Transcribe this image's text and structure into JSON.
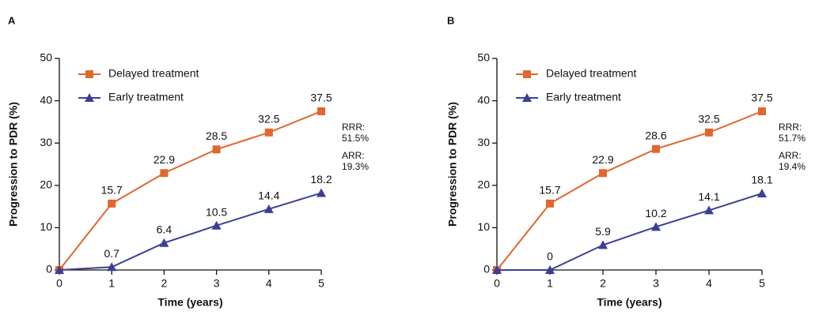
{
  "chart_data": [
    {
      "type": "line",
      "panel": "A",
      "xlabel": "Time (years)",
      "ylabel": "Progression to PDR (%)",
      "x": [
        0,
        1,
        2,
        3,
        4,
        5
      ],
      "xlim": [
        0,
        5
      ],
      "xticks": [
        0,
        1,
        2,
        3,
        4,
        5
      ],
      "ylim": [
        0,
        50
      ],
      "yticks": [
        0,
        10,
        20,
        30,
        40,
        50
      ],
      "legend": "upper left",
      "series": [
        {
          "name": "Delayed treatment",
          "color": "#e0672f",
          "marker": "square",
          "values": [
            0,
            15.7,
            22.9,
            28.5,
            32.5,
            37.5
          ],
          "value_labels": [
            null,
            "15.7",
            "22.9",
            "28.5",
            "32.5",
            "37.5"
          ]
        },
        {
          "name": "Early treatment",
          "color": "#3b3f96",
          "marker": "triangle",
          "values": [
            0,
            0.7,
            6.4,
            10.5,
            14.4,
            18.2
          ],
          "value_labels": [
            null,
            "0.7",
            "6.4",
            "10.5",
            "14.4",
            "18.2"
          ]
        }
      ],
      "annotations": [
        [
          "RRR:",
          "51.5%"
        ],
        [
          "ARR:",
          "19.3%"
        ]
      ]
    },
    {
      "type": "line",
      "panel": "B",
      "xlabel": "Time (years)",
      "ylabel": "Progression to PDR (%)",
      "x": [
        0,
        1,
        2,
        3,
        4,
        5
      ],
      "xlim": [
        0,
        5
      ],
      "xticks": [
        0,
        1,
        2,
        3,
        4,
        5
      ],
      "ylim": [
        0,
        50
      ],
      "yticks": [
        0,
        10,
        20,
        30,
        40,
        50
      ],
      "legend": "upper left",
      "series": [
        {
          "name": "Delayed treatment",
          "color": "#e0672f",
          "marker": "square",
          "values": [
            0,
            15.7,
            22.9,
            28.6,
            32.5,
            37.5
          ],
          "value_labels": [
            null,
            "15.7",
            "22.9",
            "28.6",
            "32.5",
            "37.5"
          ]
        },
        {
          "name": "Early treatment",
          "color": "#3b3f96",
          "marker": "triangle",
          "values": [
            0,
            0,
            5.9,
            10.2,
            14.1,
            18.1
          ],
          "value_labels": [
            null,
            "0",
            "5.9",
            "10.2",
            "14.1",
            "18.1"
          ]
        }
      ],
      "annotations": [
        [
          "RRR:",
          "51.7%"
        ],
        [
          "ARR:",
          "19.4%"
        ]
      ]
    }
  ]
}
